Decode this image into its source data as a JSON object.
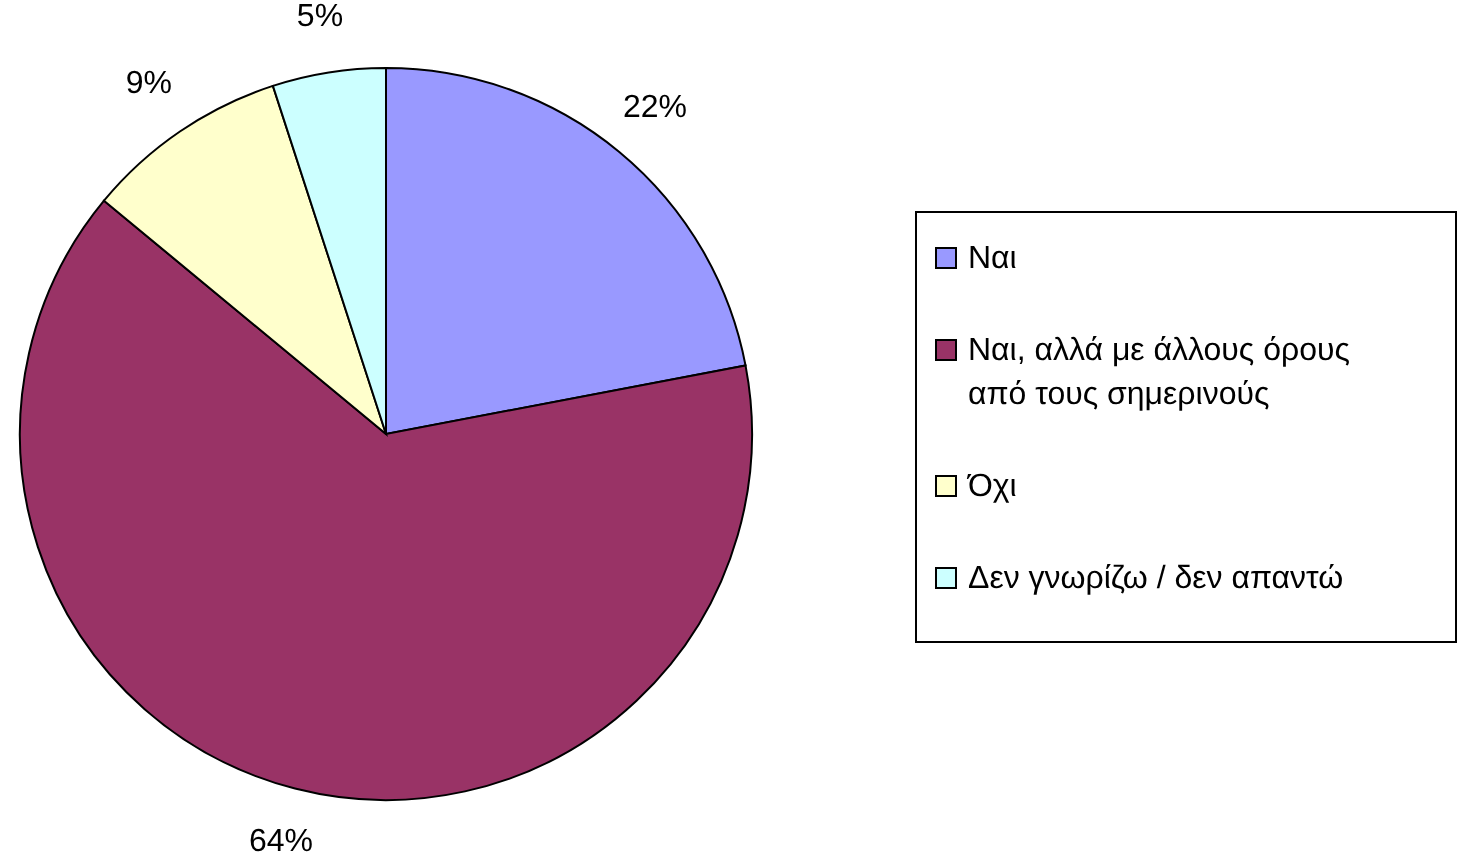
{
  "chart_data": {
    "type": "pie",
    "categories": [
      "Ναι",
      "Ναι, αλλά με άλλους όρους από τους σημερινούς",
      "Όχι",
      "Δεν γνωρίζω / δεν απαντώ"
    ],
    "values": [
      22,
      64,
      9,
      5
    ],
    "value_labels": [
      "22%",
      "64%",
      "9%",
      "5%"
    ],
    "colors": [
      "#9999ff",
      "#993366",
      "#ffffcc",
      "#ccffff"
    ],
    "legend": "right"
  }
}
